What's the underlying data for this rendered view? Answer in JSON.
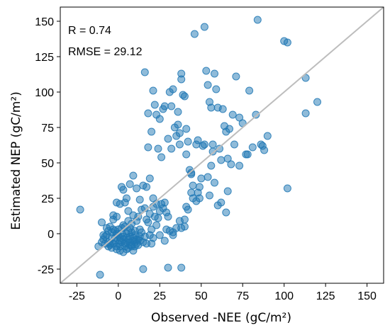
{
  "chart_data": {
    "type": "scatter",
    "title": "",
    "xlabel": "Observed -NEE (gC/m²)",
    "ylabel": "Estimated NEP (gC/m²)",
    "xlim": [
      -35,
      160
    ],
    "ylim": [
      -35,
      160
    ],
    "xticks": [
      -25,
      0,
      25,
      50,
      75,
      100,
      125,
      150
    ],
    "yticks": [
      -25,
      0,
      25,
      50,
      75,
      100,
      125,
      150
    ],
    "xtick_labels": [
      "-25",
      "0",
      "25",
      "50",
      "75",
      "100",
      "125",
      "150"
    ],
    "ytick_labels": [
      "-25",
      "0",
      "25",
      "50",
      "75",
      "100",
      "125",
      "150"
    ],
    "grid": false,
    "reference_line": "1:1",
    "annotations": [
      "R = 0.74",
      "RMSE = 29.12"
    ],
    "colors": {
      "points": "#1f77b4",
      "reference_line": "#bdbdbd"
    },
    "points": [
      [
        -23,
        17
      ],
      [
        -11,
        -29
      ],
      [
        -10,
        8
      ],
      [
        -9,
        -4
      ],
      [
        -8,
        -2
      ],
      [
        -6,
        -6
      ],
      [
        -5,
        -8
      ],
      [
        -4,
        -3
      ],
      [
        -3,
        10
      ],
      [
        -2,
        -5
      ],
      [
        -1,
        -9
      ],
      [
        0,
        -7
      ],
      [
        1,
        -3
      ],
      [
        2,
        0
      ],
      [
        3,
        -2
      ],
      [
        4,
        -9
      ],
      [
        5,
        -11
      ],
      [
        6,
        -10
      ],
      [
        7,
        -6
      ],
      [
        8,
        -8
      ],
      [
        9,
        -5
      ],
      [
        10,
        -6
      ],
      [
        11,
        -7
      ],
      [
        12,
        -4
      ],
      [
        13,
        -2
      ],
      [
        -10,
        -6
      ],
      [
        -7,
        -1
      ],
      [
        -4,
        1
      ],
      [
        -2,
        2
      ],
      [
        0,
        3
      ],
      [
        2,
        4
      ],
      [
        4,
        5
      ],
      [
        6,
        2
      ],
      [
        8,
        1
      ],
      [
        10,
        -1
      ],
      [
        -12,
        -9
      ],
      [
        -8,
        -7
      ],
      [
        -5,
        5
      ],
      [
        -3,
        13
      ],
      [
        -1,
        12
      ],
      [
        -6,
        2
      ],
      [
        -3,
        -7
      ],
      [
        -1,
        -11
      ],
      [
        1,
        -12
      ],
      [
        3,
        -13
      ],
      [
        5,
        -6
      ],
      [
        7,
        -8
      ],
      [
        1,
        -5
      ],
      [
        3,
        -4
      ],
      [
        5,
        -3
      ],
      [
        7,
        -2
      ],
      [
        9,
        -3
      ],
      [
        11,
        -4
      ],
      [
        13,
        -5
      ],
      [
        15,
        -6
      ],
      [
        17,
        -7
      ],
      [
        -1,
        22
      ],
      [
        1,
        21
      ],
      [
        3,
        31
      ],
      [
        5,
        25
      ],
      [
        7,
        35
      ],
      [
        9,
        41
      ],
      [
        11,
        32
      ],
      [
        13,
        24
      ],
      [
        15,
        34
      ],
      [
        17,
        33
      ],
      [
        19,
        39
      ],
      [
        21,
        25
      ],
      [
        23,
        21
      ],
      [
        25,
        16
      ],
      [
        27,
        18
      ],
      [
        29,
        15
      ],
      [
        16,
        114
      ],
      [
        18,
        61
      ],
      [
        20,
        72
      ],
      [
        21,
        101
      ],
      [
        22,
        91
      ],
      [
        23,
        84
      ],
      [
        25,
        81
      ],
      [
        26,
        54
      ],
      [
        27,
        88
      ],
      [
        28,
        90
      ],
      [
        30,
        67
      ],
      [
        31,
        100
      ],
      [
        32,
        90
      ],
      [
        33,
        102
      ],
      [
        34,
        75
      ],
      [
        36,
        77
      ],
      [
        37,
        71
      ],
      [
        38,
        113
      ],
      [
        38,
        109
      ],
      [
        39,
        98
      ],
      [
        40,
        97
      ],
      [
        41,
        74
      ],
      [
        42,
        65
      ],
      [
        43,
        45
      ],
      [
        44,
        29
      ],
      [
        45,
        34
      ],
      [
        46,
        141
      ],
      [
        47,
        63
      ],
      [
        48,
        66
      ],
      [
        49,
        33
      ],
      [
        50,
        39
      ],
      [
        51,
        62
      ],
      [
        52,
        146
      ],
      [
        53,
        115
      ],
      [
        54,
        105
      ],
      [
        55,
        93
      ],
      [
        56,
        89
      ],
      [
        57,
        58
      ],
      [
        58,
        113
      ],
      [
        59,
        102
      ],
      [
        60,
        89
      ],
      [
        61,
        60
      ],
      [
        62,
        52
      ],
      [
        63,
        88
      ],
      [
        64,
        76
      ],
      [
        65,
        72
      ],
      [
        66,
        53
      ],
      [
        67,
        74
      ],
      [
        68,
        49
      ],
      [
        69,
        84
      ],
      [
        70,
        63
      ],
      [
        71,
        111
      ],
      [
        73,
        82
      ],
      [
        75,
        78
      ],
      [
        77,
        56
      ],
      [
        79,
        101
      ],
      [
        81,
        61
      ],
      [
        83,
        84
      ],
      [
        84,
        151
      ],
      [
        86,
        63
      ],
      [
        88,
        59
      ],
      [
        90,
        69
      ],
      [
        100,
        136
      ],
      [
        102,
        135
      ],
      [
        102,
        32
      ],
      [
        113,
        110
      ],
      [
        113,
        85
      ],
      [
        120,
        93
      ],
      [
        30,
        -24
      ],
      [
        15,
        -25
      ],
      [
        38,
        -24
      ],
      [
        20,
        -7
      ],
      [
        25,
        -1
      ],
      [
        28,
        -5
      ],
      [
        33,
        1
      ],
      [
        35,
        4
      ],
      [
        37,
        9
      ],
      [
        40,
        5
      ],
      [
        42,
        17
      ],
      [
        45,
        25
      ],
      [
        48,
        29
      ],
      [
        55,
        27
      ],
      [
        60,
        20
      ],
      [
        65,
        15
      ],
      [
        66,
        30
      ],
      [
        62,
        22
      ],
      [
        58,
        36
      ],
      [
        54,
        40
      ],
      [
        12,
        12
      ],
      [
        14,
        17
      ],
      [
        16,
        18
      ],
      [
        18,
        8
      ],
      [
        20,
        3
      ],
      [
        22,
        12
      ],
      [
        24,
        11
      ],
      [
        26,
        21
      ],
      [
        28,
        22
      ],
      [
        30,
        12
      ],
      [
        19,
        14
      ],
      [
        17,
        10
      ],
      [
        21,
        19
      ],
      [
        23,
        6
      ],
      [
        14,
        1
      ],
      [
        11,
        9
      ],
      [
        9,
        13
      ],
      [
        6,
        16
      ],
      [
        4,
        22
      ],
      [
        2,
        33
      ],
      [
        19,
        -1
      ],
      [
        21,
        -3
      ],
      [
        16,
        -2
      ],
      [
        13,
        3
      ],
      [
        10,
        2
      ],
      [
        8,
        7
      ],
      [
        6,
        9
      ],
      [
        31,
        2
      ],
      [
        33,
        -1
      ],
      [
        29,
        3
      ],
      [
        -5,
        -7
      ],
      [
        -4,
        -10
      ],
      [
        -2,
        -3
      ],
      [
        0,
        -1
      ],
      [
        2,
        -6
      ],
      [
        4,
        -7
      ],
      [
        6,
        -4
      ],
      [
        8,
        -9
      ],
      [
        10,
        -9
      ],
      [
        12,
        -8
      ],
      [
        -9,
        -1
      ],
      [
        -7,
        4
      ],
      [
        -6,
        -9
      ],
      [
        -3,
        3
      ],
      [
        -1,
        0
      ],
      [
        1,
        -9
      ],
      [
        3,
        6
      ],
      [
        5,
        0
      ],
      [
        7,
        4
      ],
      [
        9,
        -12
      ],
      [
        73,
        48
      ],
      [
        78,
        56
      ],
      [
        87,
        62
      ],
      [
        47,
        23
      ],
      [
        52,
        63
      ],
      [
        56,
        48
      ],
      [
        44,
        42
      ],
      [
        41,
        19
      ],
      [
        40,
        10
      ],
      [
        38,
        4
      ],
      [
        35,
        69
      ],
      [
        37,
        63
      ],
      [
        24,
        60
      ],
      [
        18,
        85
      ],
      [
        32,
        60
      ],
      [
        41,
        56
      ],
      [
        36,
        86
      ],
      [
        44,
        43
      ],
      [
        49,
        25
      ],
      [
        57,
        63
      ]
    ]
  }
}
